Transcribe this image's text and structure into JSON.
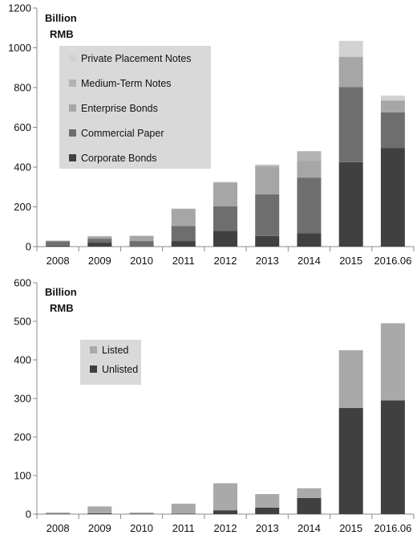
{
  "chart_data": [
    {
      "type": "bar",
      "stacked": true,
      "unit_label": [
        "Billion",
        "RMB"
      ],
      "categories": [
        "2008",
        "2009",
        "2010",
        "2011",
        "2012",
        "2013",
        "2014",
        "2015",
        "2016.06"
      ],
      "ylim": [
        0,
        1200
      ],
      "yticks": [
        0,
        200,
        400,
        600,
        800,
        1000,
        1200
      ],
      "grid": false,
      "legend_position": "top-left",
      "series": [
        {
          "name": "Corporate Bonds",
          "color": "#404040",
          "values": [
            5,
            20,
            3,
            28,
            80,
            53,
            67,
            425,
            495
          ]
        },
        {
          "name": "Commercial Paper",
          "color": "#6e6e6e",
          "values": [
            22,
            20,
            25,
            75,
            122,
            210,
            280,
            378,
            180
          ]
        },
        {
          "name": "Enterprise Bonds",
          "color": "#a6a6a6",
          "values": [
            3,
            10,
            25,
            85,
            120,
            140,
            85,
            152,
            60
          ]
        },
        {
          "name": "Medium-Term Notes",
          "color": "#b3b3b3",
          "values": [
            0,
            3,
            2,
            3,
            3,
            5,
            48,
            0,
            0
          ]
        },
        {
          "name": "Private Placement Notes",
          "color": "#d2d2d2",
          "values": [
            0,
            0,
            0,
            0,
            0,
            5,
            0,
            80,
            25
          ]
        }
      ]
    },
    {
      "type": "bar",
      "stacked": true,
      "unit_label": [
        "Billion",
        "RMB"
      ],
      "categories": [
        "2008",
        "2009",
        "2010",
        "2011",
        "2012",
        "2013",
        "2014",
        "2015",
        "2016.06"
      ],
      "ylim": [
        0,
        600
      ],
      "yticks": [
        0,
        100,
        200,
        300,
        400,
        500,
        600
      ],
      "grid": false,
      "legend_position": "top-left",
      "series": [
        {
          "name": "Unlisted",
          "color": "#404040",
          "values": [
            1,
            2,
            1,
            1,
            10,
            17,
            42,
            275,
            295
          ]
        },
        {
          "name": "Listed",
          "color": "#a9a9a9",
          "values": [
            3,
            18,
            3,
            26,
            70,
            35,
            25,
            150,
            200
          ]
        }
      ]
    }
  ]
}
